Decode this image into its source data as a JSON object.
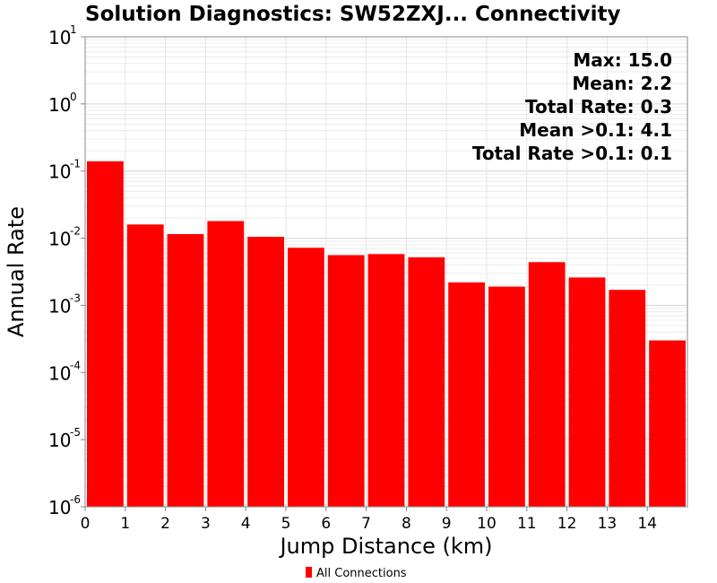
{
  "chart_data": {
    "type": "bar",
    "title": "Solution Diagnostics: SW52ZXJ... Connectivity",
    "xlabel": "Jump Distance (km)",
    "ylabel": "Annual Rate",
    "y_scale": "log",
    "ylim": [
      1e-06,
      10
    ],
    "xlim": [
      0,
      15
    ],
    "x_ticks": [
      "0",
      "1",
      "2",
      "3",
      "4",
      "5",
      "6",
      "7",
      "8",
      "9",
      "10",
      "11",
      "12",
      "13",
      "14"
    ],
    "y_ticks": [
      {
        "base": "10",
        "exp": "1"
      },
      {
        "base": "10",
        "exp": "0"
      },
      {
        "base": "10",
        "exp": "-1"
      },
      {
        "base": "10",
        "exp": "-2"
      },
      {
        "base": "10",
        "exp": "-3"
      },
      {
        "base": "10",
        "exp": "-4"
      },
      {
        "base": "10",
        "exp": "-5"
      },
      {
        "base": "10",
        "exp": "-6"
      }
    ],
    "bins": [
      {
        "x0": 0,
        "x1": 1,
        "value": 0.14
      },
      {
        "x0": 1,
        "x1": 2,
        "value": 0.016
      },
      {
        "x0": 2,
        "x1": 3,
        "value": 0.0115
      },
      {
        "x0": 3,
        "x1": 4,
        "value": 0.018
      },
      {
        "x0": 4,
        "x1": 5,
        "value": 0.0105
      },
      {
        "x0": 5,
        "x1": 6,
        "value": 0.0072
      },
      {
        "x0": 6,
        "x1": 7,
        "value": 0.0056
      },
      {
        "x0": 7,
        "x1": 8,
        "value": 0.0058
      },
      {
        "x0": 8,
        "x1": 9,
        "value": 0.0052
      },
      {
        "x0": 9,
        "x1": 10,
        "value": 0.0022
      },
      {
        "x0": 10,
        "x1": 11,
        "value": 0.0019
      },
      {
        "x0": 11,
        "x1": 12,
        "value": 0.0044
      },
      {
        "x0": 12,
        "x1": 13,
        "value": 0.0026
      },
      {
        "x0": 13,
        "x1": 14,
        "value": 0.0017
      },
      {
        "x0": 14,
        "x1": 15,
        "value": 0.0003
      }
    ],
    "annotations": [
      "Max: 15.0",
      "Mean: 2.2",
      "Total Rate: 0.3",
      "Mean >0.1: 4.1",
      "Total Rate >0.1: 0.1"
    ],
    "series": [
      {
        "name": "All Connections",
        "color": "#ff0000"
      }
    ],
    "legend_position": "bottom-center",
    "grid": true
  }
}
